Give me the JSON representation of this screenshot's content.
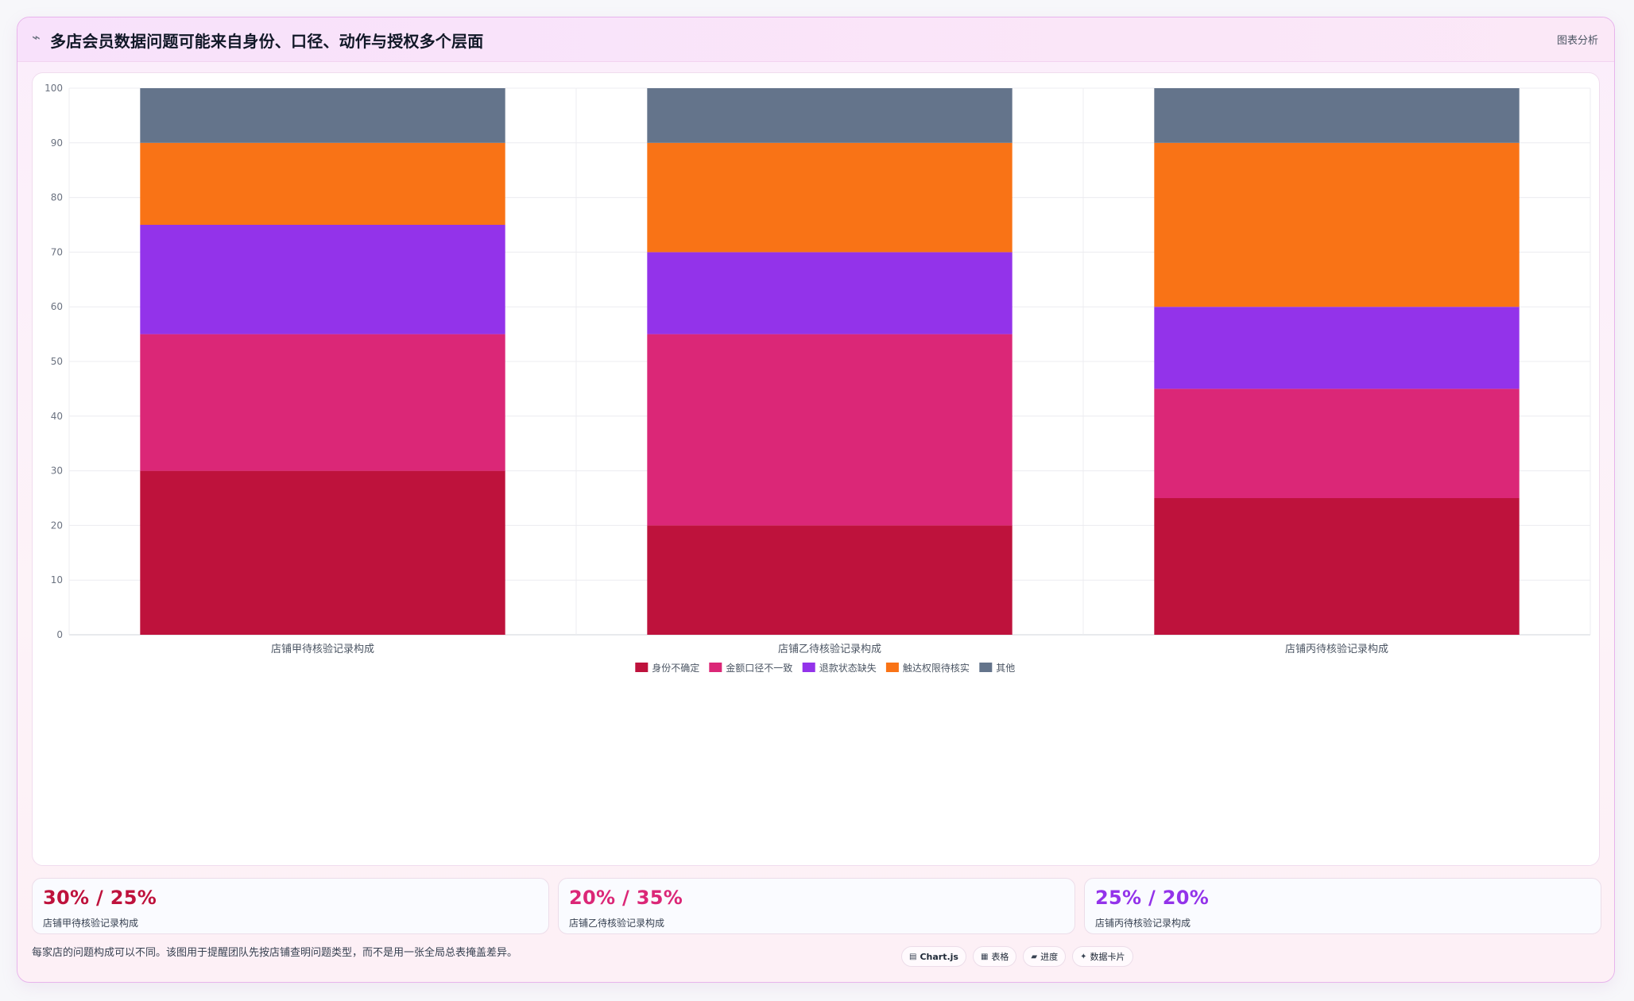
{
  "header": {
    "icon": "trend-icon",
    "title": "多店会员数据问题可能来自身份、口径、动作与授权多个层面",
    "right_label": "图表分析"
  },
  "chart_data": {
    "type": "bar",
    "stacked": true,
    "categories": [
      "店铺甲待核验记录构成",
      "店铺乙待核验记录构成",
      "店铺丙待核验记录构成"
    ],
    "series": [
      {
        "name": "身份不确定",
        "color": "#be123c",
        "values": [
          30,
          20,
          25
        ]
      },
      {
        "name": "金额口径不一致",
        "color": "#db2777",
        "values": [
          25,
          35,
          20
        ]
      },
      {
        "name": "退款状态缺失",
        "color": "#9333ea",
        "values": [
          20,
          15,
          15
        ]
      },
      {
        "name": "触达权限待核实",
        "color": "#f97316",
        "values": [
          15,
          20,
          30
        ]
      },
      {
        "name": "其他",
        "color": "#64748b",
        "values": [
          10,
          10,
          10
        ]
      }
    ],
    "ylim": [
      0,
      100
    ],
    "yticks": [
      0,
      10,
      20,
      30,
      40,
      50,
      60,
      70,
      80,
      90,
      100
    ],
    "grid": true,
    "legend": "bottom",
    "xlabel": "",
    "ylabel": "",
    "title": ""
  },
  "stats": [
    {
      "value": "30% / 25%",
      "label": "店铺甲待核验记录构成",
      "color": "#be123c"
    },
    {
      "value": "20% / 35%",
      "label": "店铺乙待核验记录构成",
      "color": "#db2777"
    },
    {
      "value": "25% / 20%",
      "label": "店铺丙待核验记录构成",
      "color": "#9333ea"
    }
  ],
  "footnote": "每家店的问题构成可以不同。该图用于提醒团队先按店铺查明问题类型，而不是用一张全局总表掩盖差异。",
  "pills": [
    {
      "icon": "chart-icon",
      "glyph": "▤",
      "label": "Chart.js"
    },
    {
      "icon": "table-icon",
      "glyph": "▦",
      "label": "表格"
    },
    {
      "icon": "progress-icon",
      "glyph": "▰",
      "label": "进度"
    },
    {
      "icon": "sparkle-icon",
      "glyph": "✦",
      "label": "数据卡片"
    }
  ]
}
